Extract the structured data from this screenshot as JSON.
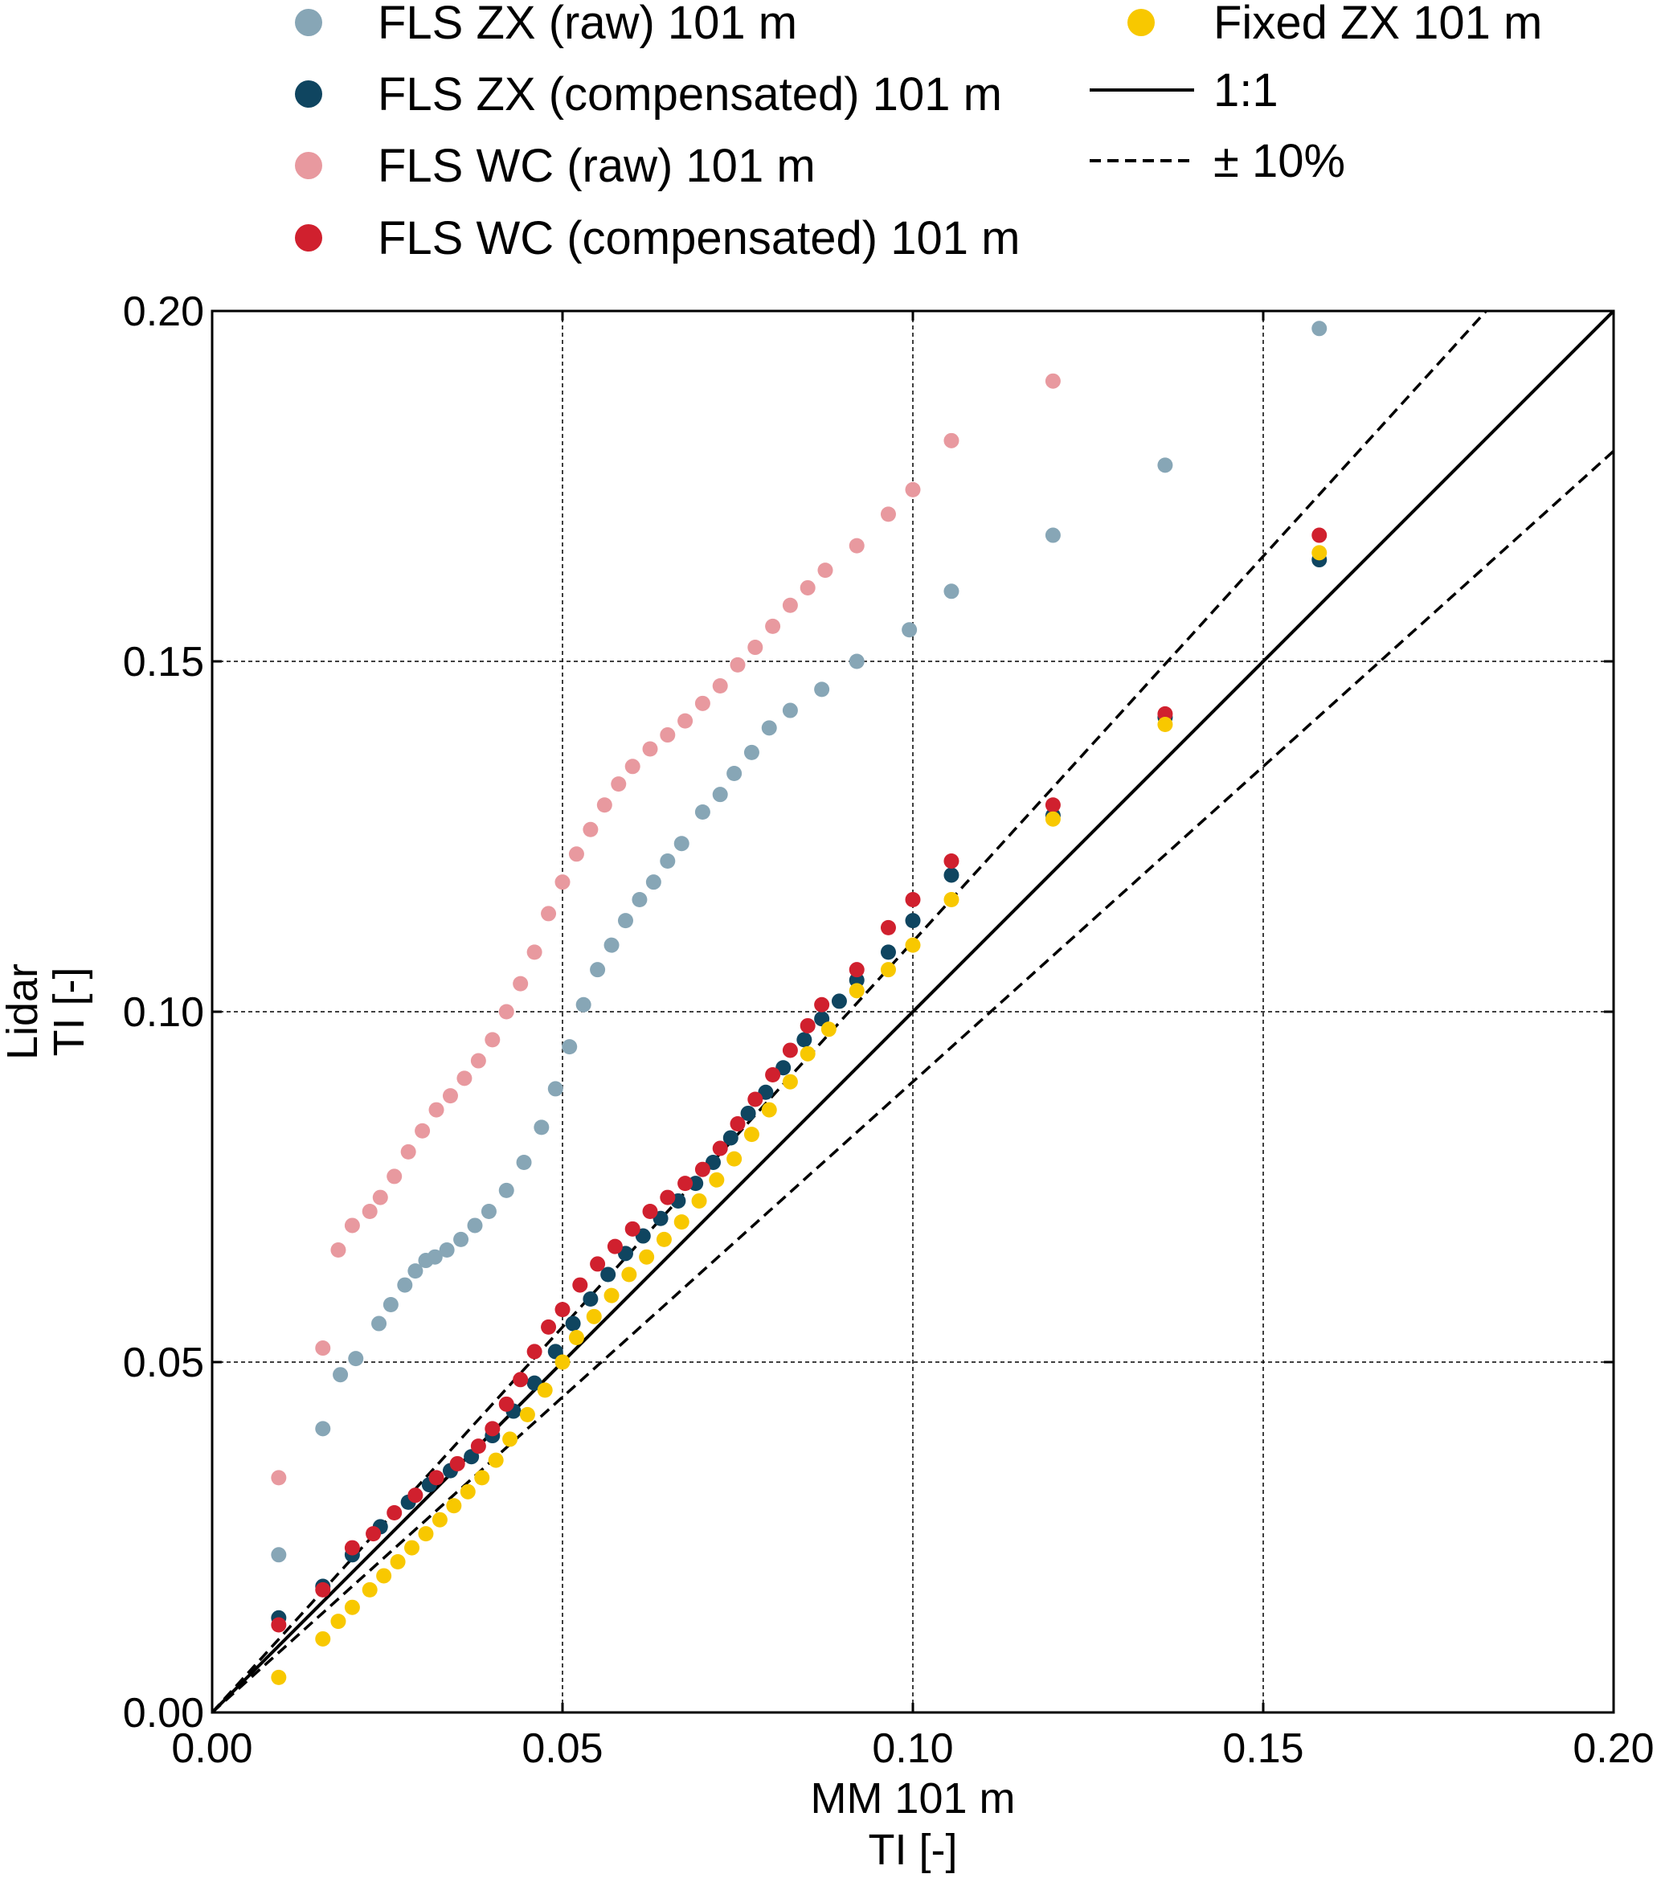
{
  "chart_data": {
    "type": "scatter",
    "xlabel_lines": [
      "MM 101 m",
      "TI [-]"
    ],
    "ylabel_lines": [
      "Lidar",
      "TI [-]"
    ],
    "xlim": [
      0.0,
      0.2
    ],
    "ylim": [
      0.0,
      0.2
    ],
    "xticks": [
      0.0,
      0.05,
      0.1,
      0.15,
      0.2
    ],
    "yticks": [
      0.0,
      0.05,
      0.1,
      0.15,
      0.2
    ],
    "xtick_labels": [
      "0.00",
      "0.05",
      "0.10",
      "0.15",
      "0.20"
    ],
    "ytick_labels": [
      "0.00",
      "0.05",
      "0.10",
      "0.15",
      "0.20"
    ],
    "grid": true,
    "legend_position": "top",
    "reference_lines": [
      {
        "name": "1:1",
        "slope": 1.0,
        "style": "solid",
        "color": "#000000"
      },
      {
        "name": "± 10%",
        "slope": 1.1,
        "style": "dashed",
        "color": "#000000"
      },
      {
        "name": "",
        "slope": 0.9,
        "style": "dashed",
        "color": "#000000"
      }
    ],
    "series": [
      {
        "name": "FLS ZX (raw) 101 m",
        "color": "#87a6b6",
        "points": [
          [
            0.0095,
            0.0225
          ],
          [
            0.0158,
            0.0405
          ],
          [
            0.0183,
            0.0482
          ],
          [
            0.0205,
            0.0505
          ],
          [
            0.0238,
            0.0555
          ],
          [
            0.0255,
            0.0582
          ],
          [
            0.0275,
            0.061
          ],
          [
            0.029,
            0.063
          ],
          [
            0.0305,
            0.0645
          ],
          [
            0.0318,
            0.065
          ],
          [
            0.0335,
            0.066
          ],
          [
            0.0355,
            0.0675
          ],
          [
            0.0375,
            0.0695
          ],
          [
            0.0395,
            0.0715
          ],
          [
            0.042,
            0.0745
          ],
          [
            0.0445,
            0.0785
          ],
          [
            0.047,
            0.0835
          ],
          [
            0.049,
            0.089
          ],
          [
            0.051,
            0.095
          ],
          [
            0.053,
            0.101
          ],
          [
            0.055,
            0.106
          ],
          [
            0.057,
            0.1095
          ],
          [
            0.059,
            0.113
          ],
          [
            0.061,
            0.116
          ],
          [
            0.063,
            0.1185
          ],
          [
            0.065,
            0.1215
          ],
          [
            0.067,
            0.124
          ],
          [
            0.07,
            0.1285
          ],
          [
            0.0725,
            0.131
          ],
          [
            0.0745,
            0.134
          ],
          [
            0.077,
            0.137
          ],
          [
            0.0795,
            0.1405
          ],
          [
            0.0825,
            0.143
          ],
          [
            0.087,
            0.146
          ],
          [
            0.092,
            0.15
          ],
          [
            0.0995,
            0.1545
          ],
          [
            0.1055,
            0.16
          ],
          [
            0.12,
            0.168
          ],
          [
            0.136,
            0.178
          ],
          [
            0.158,
            0.1975
          ]
        ]
      },
      {
        "name": "FLS ZX (compensated) 101 m",
        "color": "#0f4560",
        "points": [
          [
            0.0095,
            0.0135
          ],
          [
            0.0158,
            0.018
          ],
          [
            0.02,
            0.0225
          ],
          [
            0.024,
            0.0265
          ],
          [
            0.028,
            0.03
          ],
          [
            0.031,
            0.0325
          ],
          [
            0.034,
            0.0345
          ],
          [
            0.037,
            0.0365
          ],
          [
            0.04,
            0.0395
          ],
          [
            0.043,
            0.043
          ],
          [
            0.046,
            0.047
          ],
          [
            0.049,
            0.0515
          ],
          [
            0.0515,
            0.0555
          ],
          [
            0.054,
            0.059
          ],
          [
            0.0565,
            0.0625
          ],
          [
            0.059,
            0.0655
          ],
          [
            0.0615,
            0.068
          ],
          [
            0.064,
            0.0705
          ],
          [
            0.0665,
            0.073
          ],
          [
            0.069,
            0.0755
          ],
          [
            0.0715,
            0.0785
          ],
          [
            0.074,
            0.082
          ],
          [
            0.0765,
            0.0855
          ],
          [
            0.079,
            0.0885
          ],
          [
            0.0815,
            0.092
          ],
          [
            0.0845,
            0.096
          ],
          [
            0.087,
            0.099
          ],
          [
            0.0895,
            0.1015
          ],
          [
            0.092,
            0.1045
          ],
          [
            0.0965,
            0.1085
          ],
          [
            0.1,
            0.113
          ],
          [
            0.1055,
            0.1195
          ],
          [
            0.12,
            0.128
          ],
          [
            0.136,
            0.142
          ],
          [
            0.158,
            0.1645
          ]
        ]
      },
      {
        "name": "FLS WC (raw) 101 m",
        "color": "#e8999f",
        "points": [
          [
            0.0095,
            0.0335
          ],
          [
            0.0158,
            0.052
          ],
          [
            0.018,
            0.066
          ],
          [
            0.02,
            0.0695
          ],
          [
            0.0225,
            0.0715
          ],
          [
            0.024,
            0.0735
          ],
          [
            0.026,
            0.0765
          ],
          [
            0.028,
            0.08
          ],
          [
            0.03,
            0.083
          ],
          [
            0.032,
            0.086
          ],
          [
            0.034,
            0.088
          ],
          [
            0.036,
            0.0905
          ],
          [
            0.038,
            0.093
          ],
          [
            0.04,
            0.096
          ],
          [
            0.042,
            0.1
          ],
          [
            0.044,
            0.104
          ],
          [
            0.046,
            0.1085
          ],
          [
            0.048,
            0.114
          ],
          [
            0.05,
            0.1185
          ],
          [
            0.052,
            0.1225
          ],
          [
            0.054,
            0.126
          ],
          [
            0.056,
            0.1295
          ],
          [
            0.058,
            0.1325
          ],
          [
            0.06,
            0.135
          ],
          [
            0.0625,
            0.1375
          ],
          [
            0.065,
            0.1395
          ],
          [
            0.0675,
            0.1415
          ],
          [
            0.07,
            0.144
          ],
          [
            0.0725,
            0.1465
          ],
          [
            0.075,
            0.1495
          ],
          [
            0.0775,
            0.152
          ],
          [
            0.08,
            0.155
          ],
          [
            0.0825,
            0.158
          ],
          [
            0.085,
            0.1605
          ],
          [
            0.0875,
            0.163
          ],
          [
            0.092,
            0.1665
          ],
          [
            0.0965,
            0.171
          ],
          [
            0.1,
            0.1745
          ],
          [
            0.1055,
            0.1815
          ],
          [
            0.12,
            0.19
          ]
        ]
      },
      {
        "name": "FLS WC (compensated) 101 m",
        "color": "#d0202e",
        "points": [
          [
            0.0095,
            0.0125
          ],
          [
            0.0158,
            0.0175
          ],
          [
            0.02,
            0.0235
          ],
          [
            0.023,
            0.0255
          ],
          [
            0.026,
            0.0285
          ],
          [
            0.029,
            0.031
          ],
          [
            0.032,
            0.0335
          ],
          [
            0.035,
            0.0355
          ],
          [
            0.038,
            0.038
          ],
          [
            0.04,
            0.0405
          ],
          [
            0.042,
            0.044
          ],
          [
            0.044,
            0.0475
          ],
          [
            0.046,
            0.0515
          ],
          [
            0.048,
            0.055
          ],
          [
            0.05,
            0.0575
          ],
          [
            0.0525,
            0.061
          ],
          [
            0.055,
            0.064
          ],
          [
            0.0575,
            0.0665
          ],
          [
            0.06,
            0.069
          ],
          [
            0.0625,
            0.0715
          ],
          [
            0.065,
            0.0735
          ],
          [
            0.0675,
            0.0755
          ],
          [
            0.07,
            0.0775
          ],
          [
            0.0725,
            0.0805
          ],
          [
            0.075,
            0.084
          ],
          [
            0.0775,
            0.0875
          ],
          [
            0.08,
            0.091
          ],
          [
            0.0825,
            0.0945
          ],
          [
            0.085,
            0.098
          ],
          [
            0.087,
            0.101
          ],
          [
            0.092,
            0.106
          ],
          [
            0.0965,
            0.112
          ],
          [
            0.1,
            0.116
          ],
          [
            0.1055,
            0.1215
          ],
          [
            0.12,
            0.1295
          ],
          [
            0.136,
            0.1425
          ],
          [
            0.158,
            0.168
          ]
        ]
      },
      {
        "name": "Fixed ZX 101 m",
        "color": "#f8c800",
        "points": [
          [
            0.0095,
            0.005
          ],
          [
            0.0158,
            0.0105
          ],
          [
            0.018,
            0.013
          ],
          [
            0.02,
            0.015
          ],
          [
            0.0225,
            0.0175
          ],
          [
            0.0245,
            0.0195
          ],
          [
            0.0265,
            0.0215
          ],
          [
            0.0285,
            0.0235
          ],
          [
            0.0305,
            0.0255
          ],
          [
            0.0325,
            0.0275
          ],
          [
            0.0345,
            0.0295
          ],
          [
            0.0365,
            0.0315
          ],
          [
            0.0385,
            0.0335
          ],
          [
            0.0405,
            0.036
          ],
          [
            0.0425,
            0.039
          ],
          [
            0.045,
            0.0425
          ],
          [
            0.0475,
            0.046
          ],
          [
            0.05,
            0.05
          ],
          [
            0.052,
            0.0535
          ],
          [
            0.0545,
            0.0565
          ],
          [
            0.057,
            0.0595
          ],
          [
            0.0595,
            0.0625
          ],
          [
            0.062,
            0.065
          ],
          [
            0.0645,
            0.0675
          ],
          [
            0.067,
            0.07
          ],
          [
            0.0695,
            0.073
          ],
          [
            0.072,
            0.076
          ],
          [
            0.0745,
            0.079
          ],
          [
            0.077,
            0.0825
          ],
          [
            0.0795,
            0.086
          ],
          [
            0.0825,
            0.09
          ],
          [
            0.085,
            0.094
          ],
          [
            0.088,
            0.0975
          ],
          [
            0.092,
            0.103
          ],
          [
            0.0965,
            0.106
          ],
          [
            0.1,
            0.1095
          ],
          [
            0.1055,
            0.116
          ],
          [
            0.12,
            0.1275
          ],
          [
            0.136,
            0.141
          ],
          [
            0.158,
            0.1655
          ]
        ]
      }
    ],
    "legend": {
      "left_column": [
        {
          "label": "FLS ZX (raw) 101 m",
          "marker": "dot",
          "color": "#87a6b6"
        },
        {
          "label": "FLS ZX (compensated) 101 m",
          "marker": "dot",
          "color": "#0f4560"
        },
        {
          "label": "FLS WC (raw) 101 m",
          "marker": "dot",
          "color": "#e8999f"
        },
        {
          "label": "FLS WC (compensated) 101 m",
          "marker": "dot",
          "color": "#d0202e"
        }
      ],
      "right_column": [
        {
          "label": "Fixed ZX 101 m",
          "marker": "dot",
          "color": "#f8c800"
        },
        {
          "label": "1:1",
          "marker": "solid-line",
          "color": "#000000"
        },
        {
          "label": "± 10%",
          "marker": "dashed-line",
          "color": "#000000"
        }
      ]
    }
  }
}
